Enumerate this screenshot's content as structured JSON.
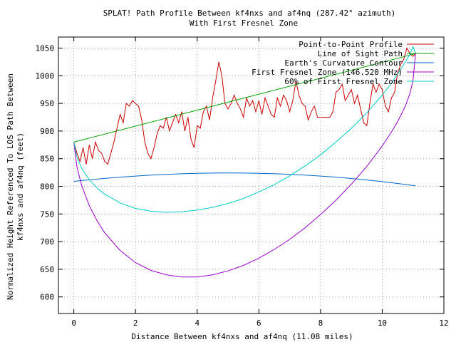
{
  "chart_data": {
    "type": "line",
    "title": "SPLAT! Path Profile Between kf4nxs and af4nq (287.42° azimuth)",
    "subtitle": "With First Fresnel Zone",
    "xlabel": "Distance Between kf4nxs and af4nq (11.08 miles)",
    "ylabel_lines": [
      "Normalized Height Referenced To LOS Path Between",
      "kf4nxs and af4nq (feet)"
    ],
    "xlim": [
      -0.5,
      12
    ],
    "ylim": [
      570,
      1070
    ],
    "xticks": [
      0,
      2,
      4,
      6,
      8,
      10,
      12
    ],
    "yticks": [
      600,
      650,
      700,
      750,
      800,
      850,
      900,
      950,
      1000,
      1050
    ],
    "grid": true,
    "legend_position": "top-right",
    "series": [
      {
        "name": "Point-to-Point Profile",
        "color": "#cc0000",
        "x": [
          0,
          0.1,
          0.2,
          0.3,
          0.4,
          0.5,
          0.6,
          0.7,
          0.8,
          0.9,
          1.0,
          1.1,
          1.2,
          1.3,
          1.4,
          1.5,
          1.6,
          1.7,
          1.8,
          1.9,
          2.0,
          2.1,
          2.2,
          2.3,
          2.4,
          2.5,
          2.6,
          2.7,
          2.8,
          2.9,
          3.0,
          3.1,
          3.2,
          3.3,
          3.4,
          3.5,
          3.6,
          3.7,
          3.8,
          3.9,
          4.0,
          4.1,
          4.2,
          4.3,
          4.4,
          4.5,
          4.6,
          4.7,
          4.8,
          4.9,
          5.0,
          5.1,
          5.2,
          5.3,
          5.4,
          5.5,
          5.6,
          5.7,
          5.8,
          5.9,
          6.0,
          6.1,
          6.2,
          6.3,
          6.4,
          6.5,
          6.6,
          6.7,
          6.8,
          6.9,
          7.0,
          7.1,
          7.2,
          7.3,
          7.4,
          7.5,
          7.6,
          7.7,
          7.8,
          7.9,
          8.0,
          8.1,
          8.2,
          8.3,
          8.4,
          8.5,
          8.6,
          8.7,
          8.8,
          8.9,
          9.0,
          9.1,
          9.2,
          9.3,
          9.4,
          9.5,
          9.6,
          9.7,
          9.8,
          9.9,
          10.0,
          10.1,
          10.2,
          10.3,
          10.4,
          10.5,
          10.6,
          10.7,
          10.8,
          10.9,
          11.0,
          11.08
        ],
        "y": [
          880,
          860,
          845,
          870,
          840,
          875,
          850,
          880,
          865,
          860,
          845,
          840,
          860,
          880,
          905,
          930,
          915,
          950,
          945,
          955,
          950,
          945,
          920,
          880,
          860,
          850,
          870,
          895,
          910,
          905,
          925,
          900,
          915,
          930,
          915,
          935,
          900,
          925,
          885,
          870,
          910,
          905,
          935,
          945,
          920,
          960,
          990,
          1025,
          1000,
          950,
          940,
          950,
          965,
          950,
          940,
          925,
          960,
          945,
          955,
          935,
          955,
          930,
          960,
          945,
          930,
          925,
          960,
          945,
          965,
          955,
          935,
          955,
          990,
          965,
          950,
          945,
          920,
          935,
          945,
          925,
          925,
          925,
          925,
          925,
          935,
          970,
          975,
          985,
          955,
          965,
          975,
          950,
          965,
          940,
          915,
          910,
          950,
          985,
          970,
          985,
          975,
          945,
          935,
          960,
          970,
          1005,
          1020,
          1030,
          1050,
          1040,
          1035,
          1040
        ]
      },
      {
        "name": "Line of Sight Path",
        "color": "#00a000",
        "x": [
          0,
          11.08
        ],
        "y": [
          880,
          1040
        ]
      },
      {
        "name": "Earth's Curvature Contour",
        "color": "#0066cc",
        "x": [
          0,
          0.5,
          1,
          1.5,
          2,
          2.5,
          3,
          3.5,
          4,
          4.5,
          5,
          5.5,
          6,
          6.5,
          7,
          7.5,
          8,
          8.5,
          9,
          9.5,
          10,
          10.5,
          11.08
        ],
        "y": [
          809,
          811.7,
          814.3,
          816.6,
          818.6,
          820.3,
          821.6,
          822.7,
          823.5,
          824,
          824.2,
          824,
          823.6,
          822.8,
          821.7,
          820.3,
          818.6,
          816.6,
          814.2,
          811.5,
          808.5,
          805.2,
          801
        ]
      },
      {
        "name": "First Fresnel Zone (146.520 MHz)",
        "color": "#9900cc",
        "x": [
          0,
          0.1,
          0.25,
          0.5,
          0.75,
          1,
          1.5,
          2,
          2.5,
          3,
          3.5,
          4,
          4.5,
          5,
          5.5,
          6,
          6.5,
          7,
          7.5,
          8,
          8.5,
          9,
          9.5,
          10,
          10.25,
          10.5,
          10.75,
          10.9,
          11.0,
          11.08
        ],
        "y": [
          880,
          835,
          802,
          765,
          738,
          716,
          684,
          662,
          648,
          640,
          636,
          636,
          640,
          647,
          657,
          670,
          686,
          704,
          725,
          749,
          775,
          804,
          836,
          873,
          894,
          917,
          945,
          968,
          992,
          1040
        ]
      },
      {
        "name": "60% of First Fresnel Zone",
        "color": "#00cccc",
        "x": [
          0,
          0.1,
          0.25,
          0.5,
          0.75,
          1,
          1.5,
          2,
          2.5,
          3,
          3.5,
          4,
          4.5,
          5,
          5.5,
          6,
          6.5,
          7,
          7.5,
          8,
          8.5,
          9,
          9.5,
          10,
          10.25,
          10.5,
          10.75,
          10.9,
          11.0,
          11.08
        ],
        "y": [
          880,
          853,
          833,
          812,
          797,
          786,
          770,
          760,
          755,
          753,
          754,
          757,
          762,
          769,
          778,
          790,
          803,
          819,
          837,
          857,
          880,
          905,
          933,
          965,
          983,
          1003,
          1025,
          1039,
          1053,
          1040
        ]
      }
    ]
  }
}
